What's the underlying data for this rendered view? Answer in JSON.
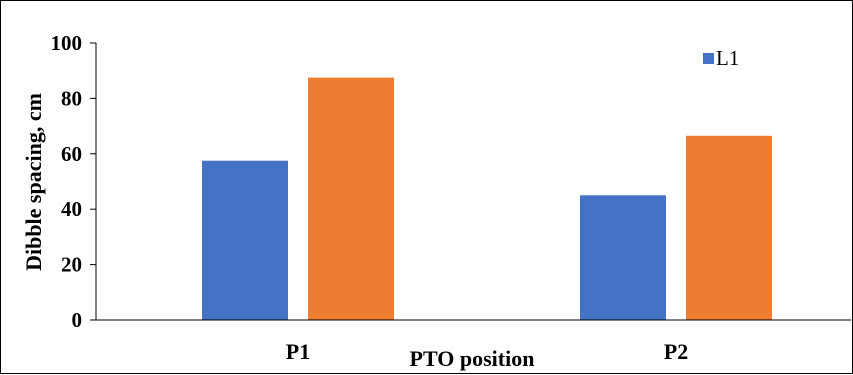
{
  "chart_data": {
    "type": "bar",
    "title": "",
    "xlabel": "PTO position",
    "ylabel": "Dibble spacing, cm",
    "categories": [
      "P1",
      "P2"
    ],
    "series": [
      {
        "name": "L1",
        "values": [
          57.5,
          45
        ],
        "color": "#4472c4"
      },
      {
        "values": [
          87.5,
          66.5
        ],
        "color": "#ed7d31"
      }
    ],
    "ylim": [
      0,
      100
    ],
    "yticks": [
      "0",
      "20",
      "40",
      "60",
      "80",
      "100"
    ],
    "grid": false,
    "legend": "top-right"
  }
}
